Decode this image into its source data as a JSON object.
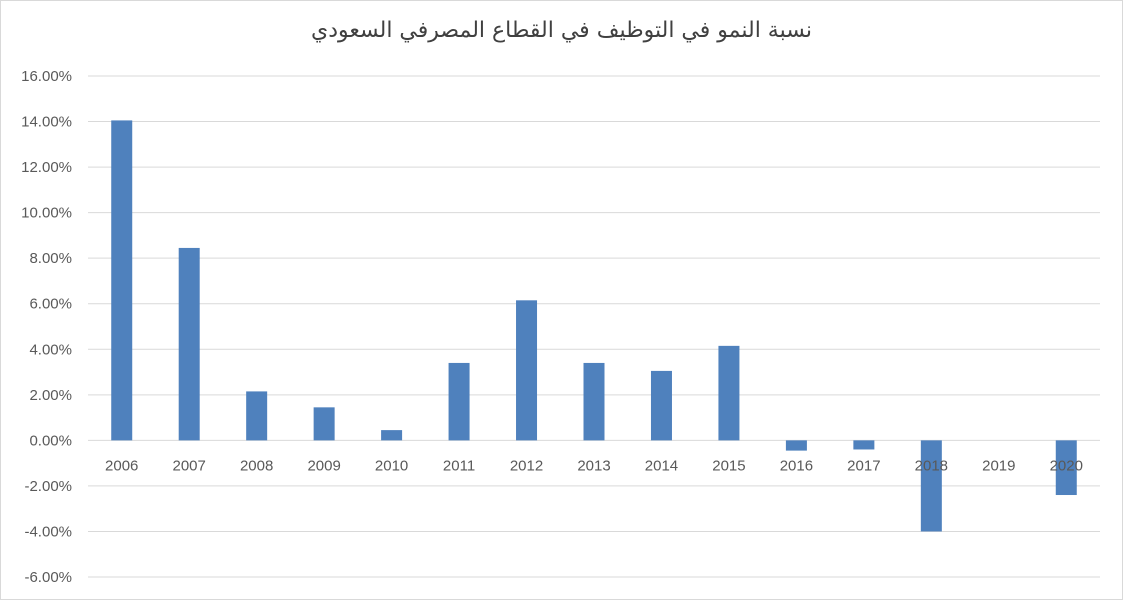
{
  "chart_data": {
    "type": "bar",
    "title": "نسبة النمو في التوظيف في القطاع المصرفي السعودي",
    "categories": [
      "2006",
      "2007",
      "2008",
      "2009",
      "2010",
      "2011",
      "2012",
      "2013",
      "2014",
      "2015",
      "2016",
      "2017",
      "2018",
      "2019",
      "2020"
    ],
    "series": [
      {
        "values": [
          14.05,
          8.45,
          2.15,
          1.45,
          0.45,
          3.4,
          6.15,
          3.4,
          3.05,
          4.15,
          -0.45,
          -0.4,
          -4.0,
          0.0,
          -2.4
        ]
      }
    ],
    "ylim": [
      -6,
      16
    ],
    "y_ticks": [
      -6,
      -4,
      -2,
      0,
      2,
      4,
      6,
      8,
      10,
      12,
      14,
      16
    ],
    "y_tick_labels": [
      "-6.00%",
      "-4.00%",
      "-2.00%",
      "0.00%",
      "2.00%",
      "4.00%",
      "6.00%",
      "8.00%",
      "10.00%",
      "12.00%",
      "14.00%",
      "16.00%"
    ],
    "xlabel": "",
    "ylabel": "",
    "grid": true,
    "legend": "none",
    "bar_color": "#4f81bd",
    "grid_color": "#d9d9d9"
  }
}
